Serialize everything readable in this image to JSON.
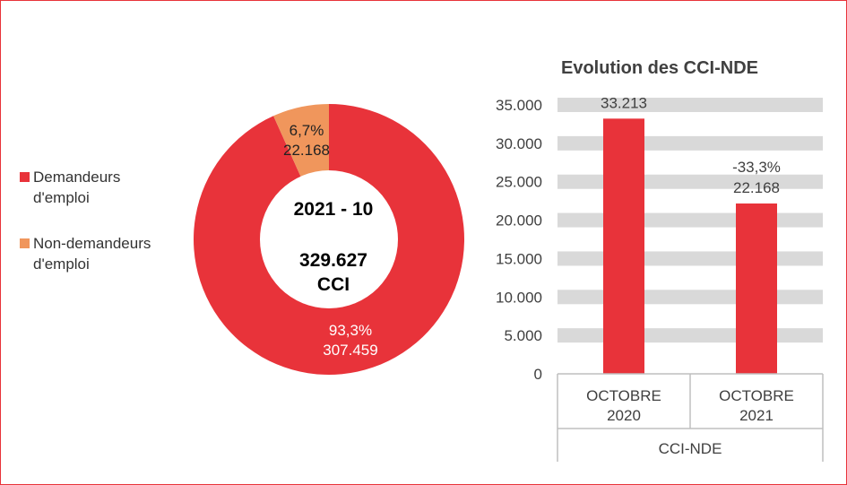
{
  "chart_data": [
    {
      "type": "pie",
      "variant": "donut",
      "center_title": "2021 - 10",
      "center_total": "329.627",
      "center_unit": "CCI",
      "slices": [
        {
          "name": "Demandeurs d'emploi",
          "value": 307459,
          "value_label": "307.459",
          "percent": 93.3,
          "percent_label": "93,3%",
          "color": "#e8333a",
          "label_color": "#ffffff"
        },
        {
          "name": "Non-demandeurs d'emploi",
          "value": 22168,
          "value_label": "22.168",
          "percent": 6.7,
          "percent_label": "6,7%",
          "color": "#f0965c",
          "label_color": "#222222"
        }
      ],
      "legend": [
        "Demandeurs d'emploi",
        "Non-demandeurs d'emploi"
      ],
      "legend_position": "left"
    },
    {
      "type": "bar",
      "title": "Evolution des CCI-NDE",
      "group_label": "CCI-NDE",
      "categories": [
        [
          "OCTOBRE",
          "2020"
        ],
        [
          "OCTOBRE",
          "2021"
        ]
      ],
      "values": [
        33213,
        22168
      ],
      "value_labels": [
        "33.213",
        "22.168"
      ],
      "change_labels": [
        "",
        "-33,3%"
      ],
      "y_ticks": [
        0,
        5000,
        10000,
        15000,
        20000,
        25000,
        30000,
        35000
      ],
      "y_tick_labels": [
        "0",
        "5.000",
        "10.000",
        "15.000",
        "20.000",
        "25.000",
        "30.000",
        "35.000"
      ],
      "ylim": [
        0,
        35000
      ],
      "bar_color": "#e8333a",
      "grid_band_color": "#d9d9d9"
    }
  ]
}
